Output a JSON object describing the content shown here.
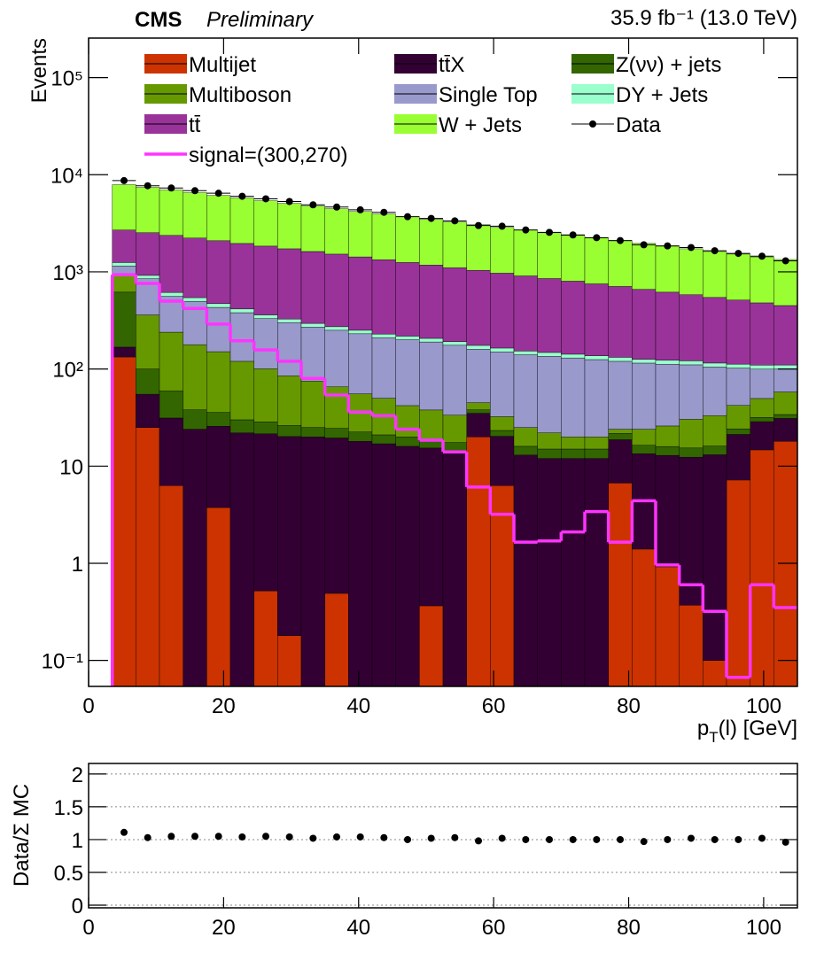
{
  "chart_data": [
    {
      "type": "stacked_histogram",
      "title": "CMS",
      "subtitle": "Preliminary",
      "lumi_label": "35.9 fb⁻¹ (13.0 TeV)",
      "y_label": "Events",
      "x_label": {
        "main": "p",
        "sub": "T",
        "rest": "(l) [GeV]"
      },
      "log_y": true,
      "xlim": [
        0,
        105
      ],
      "xticks": [
        0,
        20,
        40,
        60,
        80,
        100
      ],
      "ylim": [
        0.054,
        255000
      ],
      "yticks": [
        {
          "value": 0.1,
          "label": "10⁻¹"
        },
        1,
        10,
        {
          "value": 100,
          "label": "10²"
        },
        {
          "value": 1000,
          "label": "10³"
        },
        {
          "value": 10000,
          "label": "10⁴"
        },
        {
          "value": 100000,
          "label": "10⁵"
        }
      ],
      "bins": [
        3.5,
        7,
        10.5,
        14,
        17.5,
        21,
        24.5,
        28,
        31.5,
        35,
        38.5,
        42,
        45.5,
        49,
        52.5,
        56,
        59.5,
        63,
        66.5,
        70,
        73.5,
        77,
        80.5,
        84,
        87.5,
        91,
        94.5,
        98,
        101.5,
        105
      ],
      "series": [
        {
          "name": "Multijet",
          "color": "#cc3300",
          "style": "stack",
          "values": [
            133,
            25,
            6.3,
            0,
            3.75,
            0,
            0.52,
            0.18,
            0,
            0.49,
            0,
            0,
            0,
            0.365,
            0,
            20,
            6.3,
            0,
            0,
            0,
            0,
            6.7,
            1.4,
            0.92,
            0.37,
            0.1,
            7.2,
            14.7,
            18
          ]
        },
        {
          "name": "tt̄X",
          "color": "#330033",
          "style": "stack",
          "values": [
            35,
            30,
            25,
            24,
            22,
            22,
            21,
            20,
            20,
            19,
            18,
            17,
            16,
            15,
            14,
            15,
            14,
            13,
            12,
            12,
            12,
            12,
            12,
            12,
            12,
            13,
            14,
            14,
            13
          ]
        },
        {
          "name": "Z(νν) + jets",
          "color": "#336600",
          "style": "stack",
          "values": [
            450,
            45,
            28,
            14,
            10,
            8,
            7,
            6,
            5,
            5,
            4.5,
            4,
            4,
            3.5,
            3.5,
            3,
            3,
            3,
            3,
            3,
            3,
            3,
            3,
            3,
            3,
            3,
            3,
            3,
            3
          ]
        },
        {
          "name": "Multiboson",
          "color": "#669900",
          "style": "stack",
          "values": [
            320,
            260,
            180,
            140,
            115,
            90,
            72,
            59,
            50,
            41,
            33,
            29,
            22,
            19,
            16,
            7,
            9,
            9,
            7,
            5,
            5,
            2.3,
            7.6,
            10,
            15,
            17,
            18,
            18,
            24
          ]
        },
        {
          "name": "Single Top",
          "color": "#9999cc",
          "style": "stack",
          "values": [
            210,
            490,
            320,
            320,
            280,
            260,
            230,
            215,
            195,
            185,
            175,
            160,
            158,
            152,
            142,
            115,
            118,
            115,
            113,
            110,
            105,
            96,
            91,
            86,
            80,
            72,
            60,
            50,
            42
          ]
        },
        {
          "name": "DY + Jets",
          "color": "#99ffcc",
          "style": "stack",
          "values": [
            100,
            70,
            55,
            45,
            40,
            35,
            30,
            27,
            25,
            22,
            20,
            19,
            18,
            17,
            16,
            15,
            14,
            13,
            13,
            12,
            12,
            12,
            11,
            11,
            11,
            10,
            10,
            10,
            10
          ]
        },
        {
          "name": "tt̄",
          "color": "#993399",
          "style": "stack",
          "values": [
            1450,
            1610,
            1760,
            1685,
            1620,
            1545,
            1480,
            1400,
            1325,
            1250,
            1175,
            1105,
            1030,
            970,
            910,
            860,
            805,
            755,
            705,
            660,
            615,
            575,
            535,
            495,
            460,
            430,
            400,
            370,
            340
          ]
        },
        {
          "name": "W + Jets",
          "color": "#99ff33",
          "style": "stack",
          "values": [
            5200,
            4885,
            4585,
            4300,
            4040,
            3795,
            3560,
            3345,
            3140,
            2945,
            2765,
            2600,
            2440,
            2290,
            2155,
            2020,
            1895,
            1780,
            1670,
            1570,
            1475,
            1380,
            1300,
            1220,
            1145,
            1075,
            1010,
            945,
            890
          ]
        },
        {
          "name": "Data",
          "color": "#000000",
          "style": "points",
          "values": [
            8700,
            7700,
            7300,
            6850,
            6450,
            6000,
            5650,
            5300,
            4900,
            4650,
            4350,
            4100,
            3700,
            3550,
            3350,
            3000,
            2950,
            2700,
            2550,
            2400,
            2250,
            2100,
            1900,
            1850,
            1780,
            1650,
            1550,
            1450,
            1300
          ]
        },
        {
          "name": "signal=(300,270)",
          "color": "#ff33ff",
          "style": "step",
          "values": [
            935,
            760,
            500,
            420,
            290,
            195,
            157,
            120,
            80,
            54,
            36,
            33,
            24,
            18.5,
            14,
            6.1,
            3.2,
            1.65,
            1.7,
            2.1,
            3.4,
            1.65,
            4.4,
            0.96,
            0.6,
            0.32,
            0.067,
            0.6,
            0.35
          ]
        }
      ]
    },
    {
      "type": "scatter",
      "y_label": "Data/Σ MC",
      "xlim": [
        0,
        105
      ],
      "xticks": [
        0,
        20,
        40,
        60,
        80,
        100
      ],
      "ylim": [
        -0.04,
        2.16
      ],
      "yticks": [
        0,
        0.5,
        1,
        1.5,
        2
      ],
      "grid": true,
      "color": "#000000",
      "x": [
        5.25,
        8.75,
        12.25,
        15.75,
        19.25,
        22.75,
        26.25,
        29.75,
        33.25,
        36.75,
        40.25,
        43.75,
        47.25,
        50.75,
        54.25,
        57.75,
        61.25,
        64.75,
        68.25,
        71.75,
        75.25,
        78.75,
        82.25,
        85.75,
        89.25,
        92.75,
        96.25,
        99.75,
        103.25
      ],
      "values": [
        1.11,
        1.03,
        1.05,
        1.05,
        1.05,
        1.04,
        1.05,
        1.04,
        1.02,
        1.04,
        1.04,
        1.03,
        1.0,
        1.02,
        1.03,
        0.98,
        1.02,
        1.0,
        1.0,
        1.0,
        1.0,
        1.0,
        0.97,
        1.0,
        1.02,
        1.0,
        1.0,
        1.02,
        0.96
      ]
    }
  ]
}
